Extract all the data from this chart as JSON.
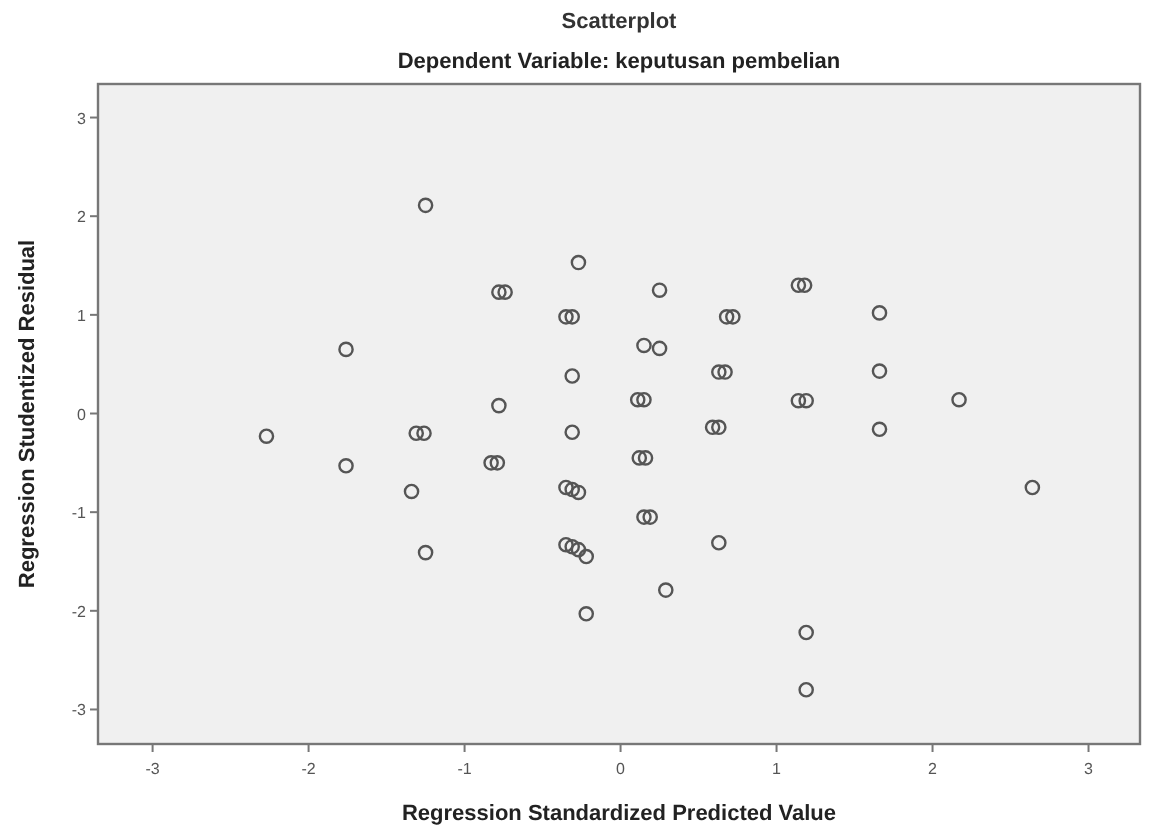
{
  "chart_data": {
    "type": "scatter",
    "title": "Scatterplot",
    "subtitle": "Dependent Variable: keputusan pembelian",
    "xlabel": "Regression Standardized Predicted Value",
    "ylabel": "Regression Studentized Residual",
    "xlim": [
      -3.35,
      3.33
    ],
    "ylim": [
      -3.35,
      3.34
    ],
    "xticks": [
      -3,
      -2,
      -1,
      0,
      1,
      2,
      3
    ],
    "yticks": [
      -3,
      -2,
      -1,
      0,
      1,
      2,
      3
    ],
    "grid": false,
    "marker": "circle",
    "series": [
      {
        "color": "#555555",
        "x": [
          -1.25,
          -0.27,
          -0.78,
          -0.74,
          -0.35,
          -0.31,
          -1.76,
          -0.31,
          -0.78,
          -0.31,
          -2.27,
          -1.31,
          -1.26,
          0.25,
          1.14,
          1.18,
          0.68,
          0.72,
          1.66,
          0.15,
          0.25,
          0.63,
          0.67,
          1.66,
          0.11,
          0.15,
          1.14,
          1.19,
          2.17,
          0.59,
          0.63,
          1.66,
          -1.76,
          -0.83,
          -0.79,
          -1.34,
          -0.35,
          -0.31,
          -0.27,
          -1.25,
          -0.35,
          -0.31,
          -0.27,
          -0.22,
          -0.22,
          0.12,
          0.16,
          2.64,
          0.15,
          0.19,
          0.63,
          0.29,
          1.19,
          1.19
        ],
        "values": [
          2.11,
          1.53,
          1.23,
          1.23,
          0.98,
          0.98,
          0.65,
          0.38,
          0.08,
          -0.19,
          -0.23,
          -0.2,
          -0.2,
          1.25,
          1.3,
          1.3,
          0.98,
          0.98,
          1.02,
          0.69,
          0.66,
          0.42,
          0.42,
          0.43,
          0.14,
          0.14,
          0.13,
          0.13,
          0.14,
          -0.14,
          -0.14,
          -0.16,
          -0.53,
          -0.5,
          -0.5,
          -0.79,
          -0.75,
          -0.77,
          -0.8,
          -1.41,
          -1.33,
          -1.35,
          -1.38,
          -1.45,
          -2.03,
          -0.45,
          -0.45,
          -0.75,
          -1.05,
          -1.05,
          -1.31,
          -1.79,
          -2.22,
          -2.8
        ]
      }
    ]
  }
}
